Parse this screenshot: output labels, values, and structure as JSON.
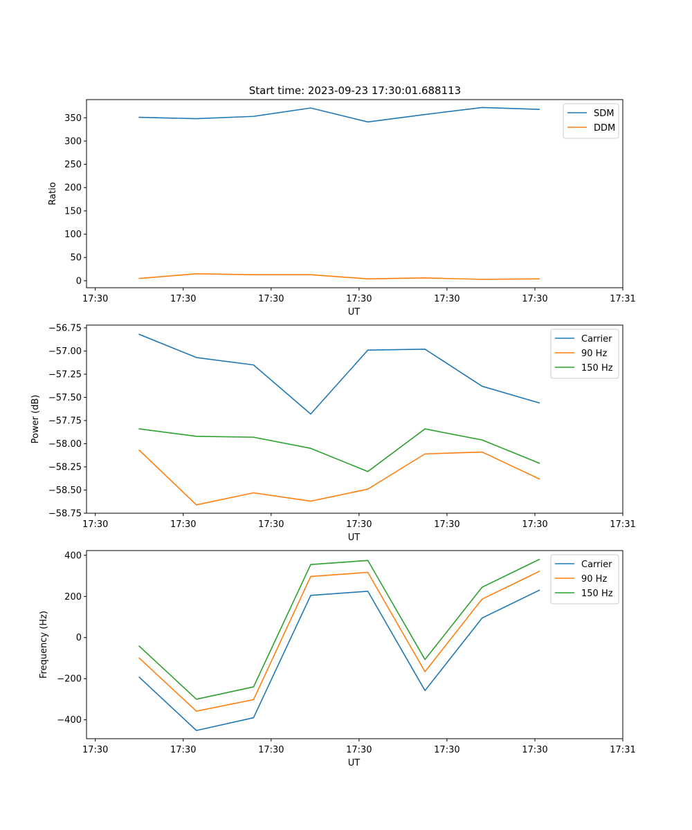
{
  "figure": {
    "title": "Start time: 2023-09-23 17:30:01.688113"
  },
  "chart_data": [
    {
      "type": "line",
      "title": "Start time: 2023-09-23 17:30:01.688113",
      "xlabel": "UT",
      "ylabel": "Ratio",
      "x_tick_labels": [
        "17:30",
        "17:30",
        "17:30",
        "17:30",
        "17:30",
        "17:30",
        "17:31"
      ],
      "x_ticks": [
        0,
        1,
        2,
        3,
        4,
        5,
        6
      ],
      "xlim": [
        -0.1,
        6.0
      ],
      "ylim": [
        -15,
        389
      ],
      "y_ticks": [
        0,
        50,
        100,
        150,
        200,
        250,
        300,
        350
      ],
      "y_tick_labels": [
        "0",
        "50",
        "100",
        "150",
        "200",
        "250",
        "300",
        "350"
      ],
      "legend": "top-right",
      "x": [
        0.5,
        1.15,
        1.8,
        2.45,
        3.1,
        3.75,
        4.4,
        5.05
      ],
      "series": [
        {
          "name": "SDM",
          "color": "#1f77b4",
          "values": [
            351,
            348,
            353,
            371,
            341,
            357,
            372,
            368
          ]
        },
        {
          "name": "DDM",
          "color": "#ff7f0e",
          "values": [
            5,
            15,
            13,
            13,
            4,
            6,
            3,
            4
          ]
        }
      ]
    },
    {
      "type": "line",
      "xlabel": "UT",
      "ylabel": "Power (dB)",
      "x_tick_labels": [
        "17:30",
        "17:30",
        "17:30",
        "17:30",
        "17:30",
        "17:30",
        "17:31"
      ],
      "x_ticks": [
        0,
        1,
        2,
        3,
        4,
        5,
        6
      ],
      "xlim": [
        -0.1,
        6.0
      ],
      "ylim": [
        -58.75,
        -56.72
      ],
      "y_ticks": [
        -58.75,
        -58.5,
        -58.25,
        -58.0,
        -57.75,
        -57.5,
        -57.25,
        -57.0,
        -56.75
      ],
      "y_tick_labels": [
        "−58.75",
        "−58.50",
        "−58.25",
        "−58.00",
        "−57.75",
        "−57.50",
        "−57.25",
        "−57.00",
        "−56.75"
      ],
      "legend": "top-right",
      "x": [
        0.5,
        1.15,
        1.8,
        2.45,
        3.1,
        3.75,
        4.4,
        5.05
      ],
      "series": [
        {
          "name": "Carrier",
          "color": "#1f77b4",
          "values": [
            -56.82,
            -57.07,
            -57.15,
            -57.68,
            -56.99,
            -56.98,
            -57.38,
            -57.56
          ]
        },
        {
          "name": "90 Hz",
          "color": "#ff7f0e",
          "values": [
            -58.07,
            -58.66,
            -58.53,
            -58.62,
            -58.49,
            -58.11,
            -58.09,
            -58.38
          ]
        },
        {
          "name": "150 Hz",
          "color": "#2ca02c",
          "values": [
            -57.84,
            -57.92,
            -57.93,
            -58.05,
            -58.3,
            -57.84,
            -57.96,
            -58.21
          ]
        }
      ]
    },
    {
      "type": "line",
      "xlabel": "UT",
      "ylabel": "Frequency (Hz)",
      "x_tick_labels": [
        "17:30",
        "17:30",
        "17:30",
        "17:30",
        "17:30",
        "17:30",
        "17:31"
      ],
      "x_ticks": [
        0,
        1,
        2,
        3,
        4,
        5,
        6
      ],
      "xlim": [
        -0.1,
        6.0
      ],
      "ylim": [
        -492,
        423
      ],
      "y_ticks": [
        -400,
        -200,
        0,
        200,
        400
      ],
      "y_tick_labels": [
        "−400",
        "−200",
        "0",
        "200",
        "400"
      ],
      "legend": "top-right",
      "x": [
        0.5,
        1.15,
        1.8,
        2.45,
        3.1,
        3.75,
        4.4,
        5.05
      ],
      "series": [
        {
          "name": "Carrier",
          "color": "#1f77b4",
          "values": [
            -193,
            -452,
            -390,
            205,
            225,
            -258,
            95,
            230
          ]
        },
        {
          "name": "90 Hz",
          "color": "#ff7f0e",
          "values": [
            -100,
            -358,
            -302,
            297,
            317,
            -166,
            187,
            322
          ]
        },
        {
          "name": "150 Hz",
          "color": "#2ca02c",
          "values": [
            -42,
            -300,
            -240,
            355,
            375,
            -107,
            245,
            380
          ]
        }
      ]
    }
  ]
}
